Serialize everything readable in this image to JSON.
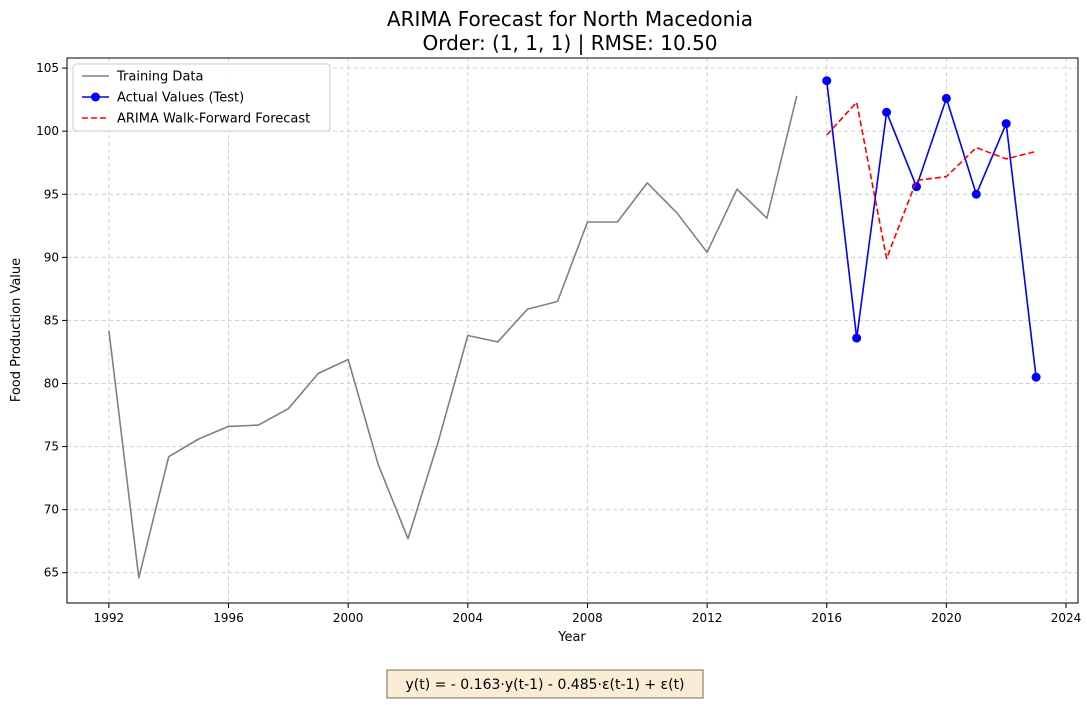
{
  "chart_data": {
    "type": "line",
    "title_line1": "ARIMA Forecast for North Macedonia",
    "title_line2": "Order: (1, 1, 1) | RMSE: 10.50",
    "xlabel": "Year",
    "ylabel": "Food Production Value",
    "xlim": [
      1990.6,
      2024.4
    ],
    "ylim": [
      62.6,
      105.8
    ],
    "xticks": [
      1992,
      1996,
      2000,
      2004,
      2008,
      2012,
      2016,
      2020,
      2024
    ],
    "yticks": [
      65,
      70,
      75,
      80,
      85,
      90,
      95,
      100,
      105
    ],
    "grid": true,
    "legend_position": "top-left",
    "series": [
      {
        "name": "Training Data",
        "color": "#808080",
        "style": "solid",
        "markers": false,
        "x": [
          1992,
          1993,
          1994,
          1995,
          1996,
          1997,
          1998,
          1999,
          2000,
          2001,
          2002,
          2003,
          2004,
          2005,
          2006,
          2007,
          2008,
          2009,
          2010,
          2011,
          2012,
          2013,
          2014,
          2015
        ],
        "y": [
          84.2,
          64.6,
          74.2,
          75.6,
          76.6,
          76.7,
          78.0,
          80.8,
          81.9,
          73.6,
          67.7,
          75.3,
          83.8,
          83.3,
          85.9,
          86.5,
          92.8,
          92.8,
          95.9,
          93.5,
          90.4,
          95.4,
          93.1,
          102.8
        ]
      },
      {
        "name": "Actual Values (Test)",
        "color": "#0000ff",
        "style": "solid",
        "markers": true,
        "x": [
          2016,
          2017,
          2018,
          2019,
          2020,
          2021,
          2022,
          2023
        ],
        "y": [
          104.0,
          83.6,
          101.5,
          95.6,
          102.6,
          95.0,
          100.6,
          80.5
        ]
      },
      {
        "name": "ARIMA Walk-Forward Forecast",
        "color": "#ff0000",
        "style": "dashed",
        "markers": false,
        "x": [
          2016,
          2017,
          2018,
          2019,
          2020,
          2021,
          2022,
          2023
        ],
        "y": [
          99.7,
          102.3,
          89.9,
          96.1,
          96.4,
          98.7,
          97.8,
          98.4
        ]
      }
    ]
  },
  "equation": {
    "text": "y(t) = - 0.163·y(t-1) - 0.485·ε(t-1) + ε(t)",
    "background": "#f5deb3",
    "border": "#7a6a55"
  }
}
